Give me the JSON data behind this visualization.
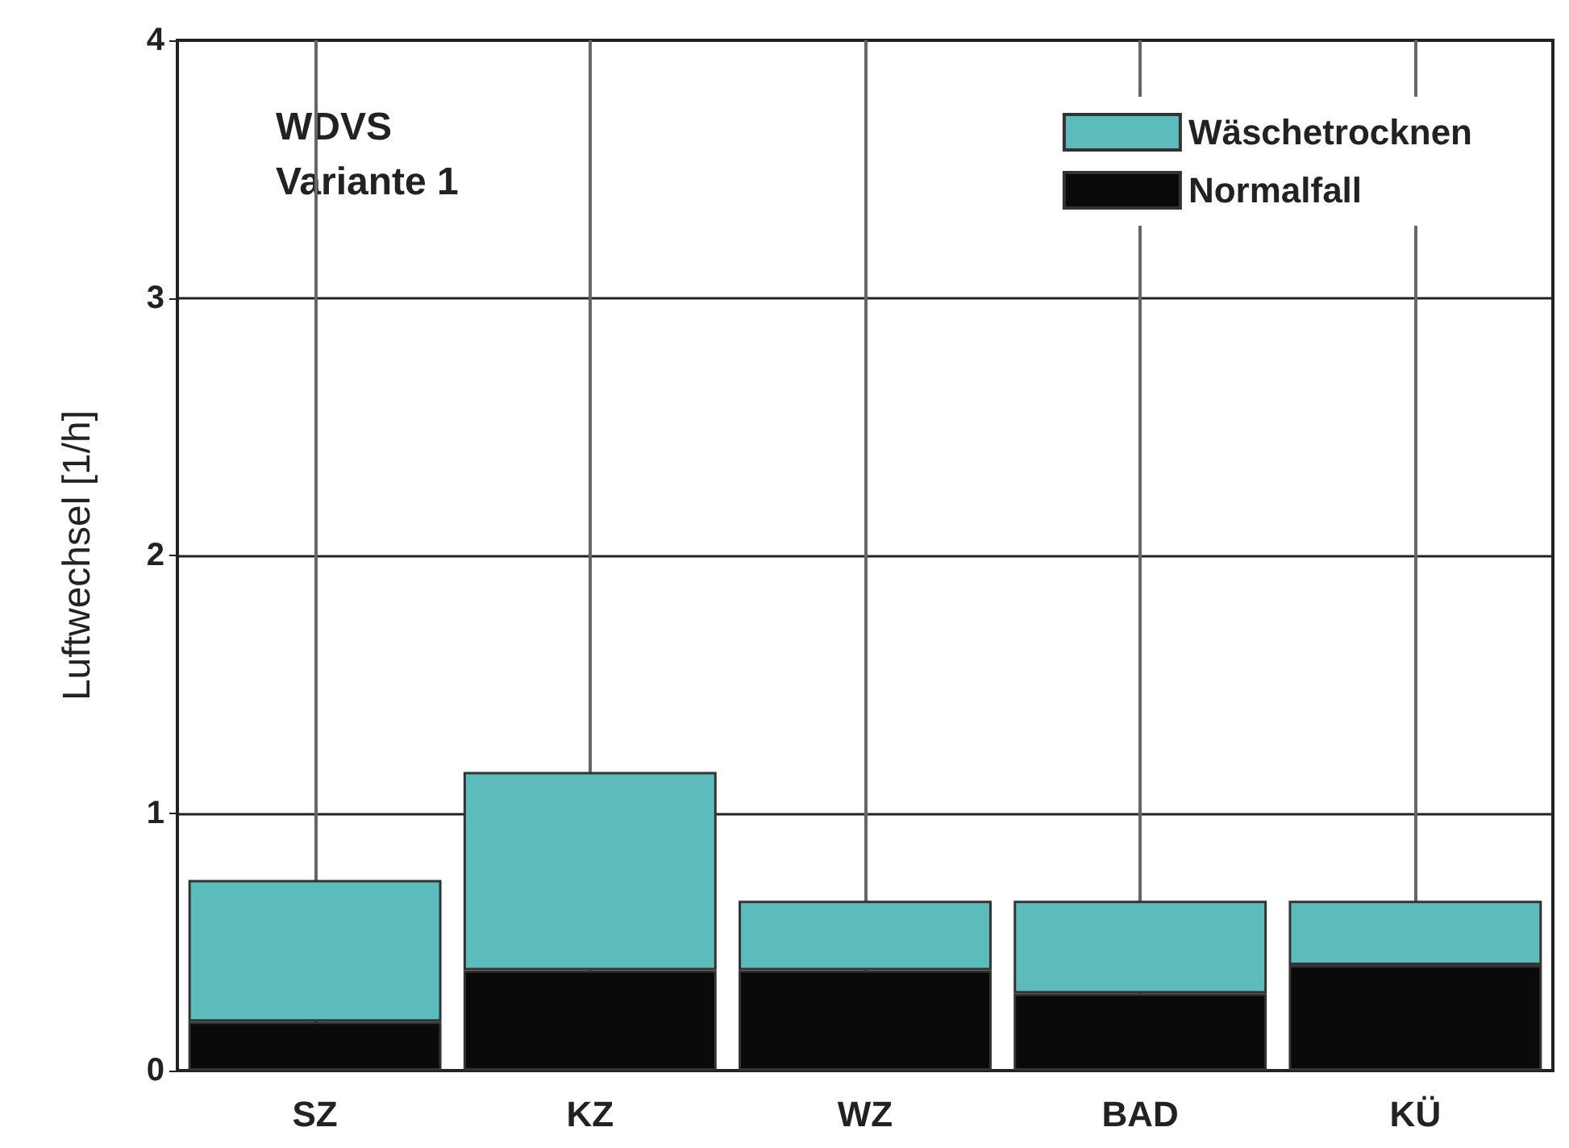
{
  "chart_data": {
    "type": "bar",
    "ylabel": "Luftwechsel [1/h]",
    "annotations": [
      "WDVS\nVariante 1"
    ],
    "categories": [
      "SZ",
      "KZ",
      "WZ",
      "BAD",
      "KÜ"
    ],
    "series": [
      {
        "name": "Normalfall",
        "color": "#0a0a0a",
        "values": [
          0.19,
          0.39,
          0.39,
          0.3,
          0.41
        ]
      },
      {
        "name": "Wäschetrocknen",
        "color": "#5cbcbc",
        "values": [
          0.55,
          0.77,
          0.27,
          0.36,
          0.25
        ]
      }
    ],
    "stacked": true,
    "ylim": [
      0,
      4
    ],
    "yticks": [
      0,
      1,
      2,
      3,
      4
    ],
    "grid": true,
    "legend": "top right"
  }
}
